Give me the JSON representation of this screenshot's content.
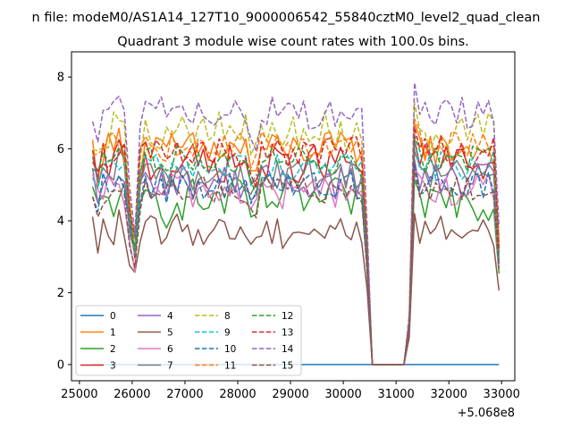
{
  "suptitle": "n file: modeM0/AS1A14_127T10_9000006542_55840cztM0_level2_quad_clean",
  "chart_data": {
    "type": "line",
    "title": "Quadrant 3 module wise count rates with 100.0s bins.",
    "xlabel": "",
    "ylabel": "",
    "x_offset_label": "+5.068e8",
    "xlim": [
      24850,
      33250
    ],
    "ylim": [
      -0.45,
      8.7
    ],
    "x_ticks": [
      25000,
      26000,
      27000,
      28000,
      29000,
      30000,
      31000,
      32000,
      33000
    ],
    "x_tick_labels": [
      "25000",
      "26000",
      "27000",
      "28000",
      "29000",
      "30000",
      "31000",
      "32000",
      "33000"
    ],
    "y_ticks": [
      0,
      2,
      4,
      6,
      8
    ],
    "y_tick_labels": [
      "0",
      "2",
      "4",
      "6",
      "8"
    ],
    "grid": false,
    "legend_position": "lower-left",
    "legend_columns": 4,
    "x_start": 25250,
    "x_step": 100,
    "num_points": 78,
    "gap_start_index": 52,
    "gap_end_index": 60,
    "series": [
      {
        "name": "0",
        "color": "#1f77b4",
        "style": "solid",
        "base": 0.0,
        "amp": 0.0
      },
      {
        "name": "1",
        "color": "#ff7f0e",
        "style": "solid",
        "base": 6.0,
        "amp": 0.5
      },
      {
        "name": "2",
        "color": "#2ca02c",
        "style": "solid",
        "base": 4.6,
        "amp": 0.6
      },
      {
        "name": "3",
        "color": "#d62728",
        "style": "solid",
        "base": 5.6,
        "amp": 0.55
      },
      {
        "name": "4",
        "color": "#9467bd",
        "style": "solid",
        "base": 5.1,
        "amp": 0.5
      },
      {
        "name": "5",
        "color": "#8c564b",
        "style": "solid",
        "base": 3.75,
        "amp": 0.45
      },
      {
        "name": "6",
        "color": "#e377c2",
        "style": "solid",
        "base": 4.85,
        "amp": 0.5
      },
      {
        "name": "7",
        "color": "#7f7f7f",
        "style": "solid",
        "base": 5.3,
        "amp": 0.5
      },
      {
        "name": "8",
        "color": "#bcbd22",
        "style": "dashed",
        "base": 6.5,
        "amp": 0.55
      },
      {
        "name": "9",
        "color": "#17becf",
        "style": "dashed",
        "base": 5.55,
        "amp": 0.4
      },
      {
        "name": "10",
        "color": "#1f77b4",
        "style": "dashed",
        "base": 5.0,
        "amp": 0.4
      },
      {
        "name": "11",
        "color": "#ff7f0e",
        "style": "dashed",
        "base": 6.1,
        "amp": 0.4
      },
      {
        "name": "12",
        "color": "#2ca02c",
        "style": "dashed",
        "base": 5.7,
        "amp": 0.4
      },
      {
        "name": "13",
        "color": "#d62728",
        "style": "dashed",
        "base": 5.9,
        "amp": 0.45
      },
      {
        "name": "14",
        "color": "#9467bd",
        "style": "dashed",
        "base": 7.0,
        "amp": 0.45
      },
      {
        "name": "15",
        "color": "#8c564b",
        "style": "dashed",
        "base": 4.85,
        "amp": 0.4
      }
    ]
  }
}
